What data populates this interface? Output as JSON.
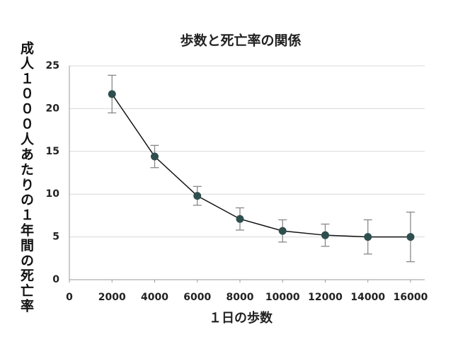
{
  "chart_data": {
    "type": "line",
    "title": "歩数と死亡率の関係",
    "x_label": "１日の歩数",
    "y_label": "成人１０００人あたりの１年間の死亡率",
    "x": [
      2000,
      4000,
      6000,
      8000,
      10000,
      12000,
      14000,
      16000
    ],
    "values": [
      21.7,
      14.4,
      9.8,
      7.1,
      5.7,
      5.2,
      5.0,
      5.0
    ],
    "errors": [
      2.2,
      1.3,
      1.1,
      1.3,
      1.3,
      1.3,
      2.0,
      2.9
    ],
    "color": "#2f4f4f",
    "line_color": "#111111",
    "error_color": "#888888",
    "xlim": [
      0,
      16000
    ],
    "xticks": [
      0,
      2000,
      4000,
      6000,
      8000,
      10000,
      12000,
      14000,
      16000
    ],
    "ylim": [
      0,
      25
    ],
    "yticks": [
      0,
      5,
      10,
      15,
      20,
      25
    ],
    "grid": true
  }
}
